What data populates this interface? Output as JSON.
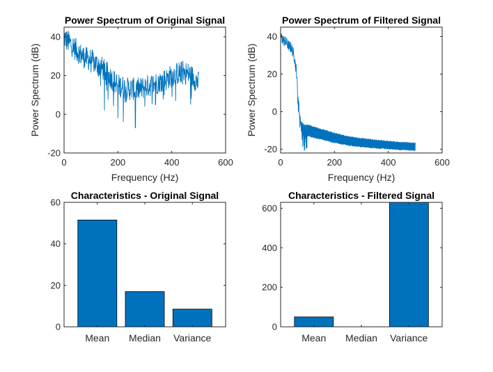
{
  "figure": {
    "background": "#ffffff",
    "axis_color": "#262626",
    "series_color": "#0072BD"
  },
  "chart_data": [
    {
      "type": "line",
      "title": "Power Spectrum of Original Signal",
      "xlabel": "Frequency (Hz)",
      "ylabel": "Power Spectrum (dB)",
      "xlim": [
        0,
        600
      ],
      "ylim": [
        -20,
        45
      ],
      "xticks": [
        0,
        200,
        400,
        600
      ],
      "yticks": [
        -20,
        0,
        20,
        40
      ],
      "grid": false,
      "style": "noisy",
      "x": [
        0,
        10,
        20,
        40,
        60,
        80,
        100,
        120,
        140,
        160,
        180,
        200,
        220,
        240,
        260,
        280,
        300,
        320,
        340,
        360,
        380,
        400,
        420,
        440,
        460,
        480,
        500
      ],
      "y": [
        40,
        38,
        37,
        34,
        31,
        29,
        28,
        26,
        24,
        21,
        18,
        15,
        14,
        13,
        13,
        13,
        14,
        15,
        16,
        17,
        18,
        20,
        21,
        22,
        21,
        19,
        16
      ],
      "noise_amplitude": 6,
      "deep_dips": [
        [
          150,
          2
        ],
        [
          200,
          -2
        ],
        [
          220,
          -4
        ],
        [
          265,
          -7
        ],
        [
          300,
          4
        ],
        [
          340,
          5
        ],
        [
          470,
          5
        ]
      ]
    },
    {
      "type": "line",
      "title": "Power Spectrum of Filtered Signal",
      "xlabel": "Frequency (Hz)",
      "ylabel": "Power Spectrum (dB)",
      "xlim": [
        0,
        600
      ],
      "ylim": [
        -22,
        45
      ],
      "xticks": [
        0,
        200,
        400,
        600
      ],
      "yticks": [
        -20,
        0,
        20,
        40
      ],
      "grid": false,
      "style": "filtered",
      "x": [
        0,
        10,
        20,
        30,
        40,
        50,
        60,
        65,
        70,
        75,
        80,
        90,
        100,
        150,
        200,
        250,
        300,
        350,
        400,
        450,
        500
      ],
      "y": [
        40,
        38,
        37,
        35,
        34,
        30,
        20,
        8,
        0,
        -6,
        -9,
        -10,
        -10,
        -12,
        -14,
        -15.5,
        -16.5,
        -17.2,
        -17.8,
        -18.3,
        -18.7
      ],
      "band_halfwidth": [
        0,
        0,
        0,
        0,
        0,
        0,
        0,
        0,
        0,
        2,
        3,
        3,
        3,
        2.8,
        2.6,
        2.4,
        2.3,
        2.2,
        2.1,
        2.0,
        2.0
      ],
      "noise_amplitude": 3
    },
    {
      "type": "bar",
      "title": "Characteristics - Original Signal",
      "categories": [
        "Mean",
        "Median",
        "Variance"
      ],
      "values": [
        51.5,
        17,
        8.5
      ],
      "ylim": [
        0,
        60
      ],
      "yticks": [
        0,
        20,
        40,
        60
      ]
    },
    {
      "type": "bar",
      "title": "Characteristics - Filtered Signal",
      "categories": [
        "Mean",
        "Median",
        "Variance"
      ],
      "values": [
        50,
        0,
        680
      ],
      "ylim": [
        0,
        630
      ],
      "yticks": [
        0,
        200,
        400,
        600
      ]
    }
  ]
}
